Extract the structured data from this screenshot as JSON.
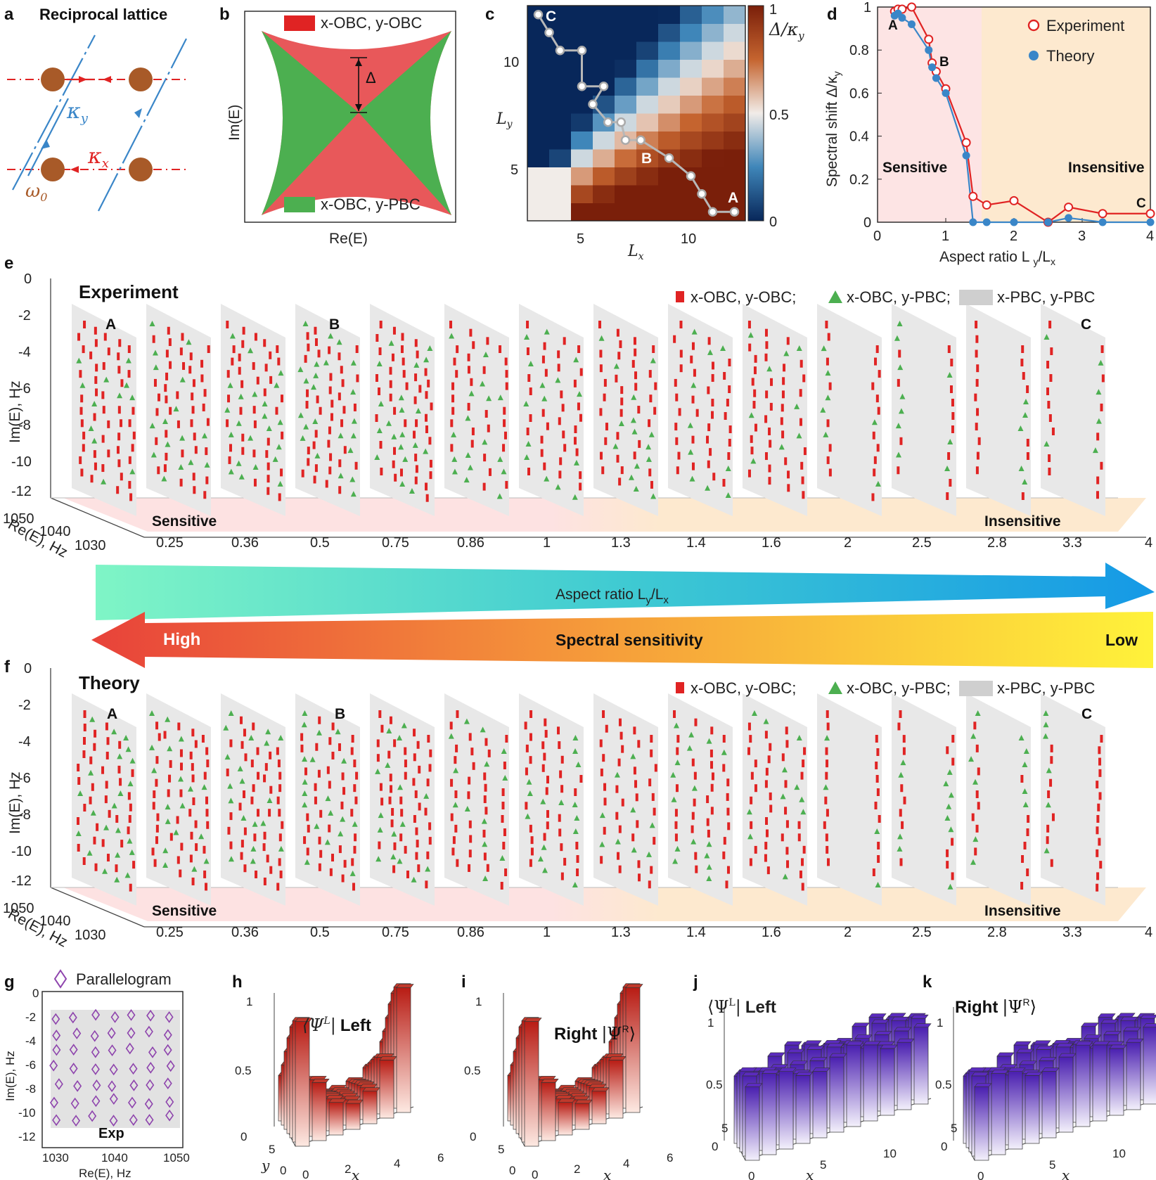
{
  "panel_letters": {
    "a": "a",
    "b": "b",
    "c": "c",
    "d": "d",
    "e": "e",
    "f": "f",
    "g": "g",
    "h": "h",
    "i": "i",
    "j": "j",
    "k": "k"
  },
  "colors": {
    "red": "#e02323",
    "green": "#4caf50",
    "blue": "#3a86c8",
    "brown": "#a85a28",
    "pink_region": "#fde4e4",
    "peach_region": "#fde9cf",
    "plane": "#e6e6e6"
  },
  "panel_a": {
    "title": "Reciprocal lattice",
    "kappa_y": "κ",
    "kappa_y_sub": "y",
    "kappa_x": "κ",
    "kappa_x_sub": "x",
    "omega": "ω",
    "omega_sub": "0"
  },
  "panel_b": {
    "legend_top": "x-OBC, y-OBC",
    "legend_bottom": "x-OBC, y-PBC",
    "gap_label": "Δ",
    "xlabel": "Re(E)",
    "ylabel": "Im(E)"
  },
  "panel_c": {
    "xlabel": "L",
    "xlabel_sub": "x",
    "ylabel": "L",
    "ylabel_sub": "y",
    "xticks": [
      "5",
      "10"
    ],
    "yticks": [
      "5",
      "10"
    ],
    "cbar_ticks": [
      "1",
      "0.5",
      "0"
    ],
    "cbar_label": "Δ/κ",
    "cbar_label_sub": "y",
    "point_labels": {
      "A": "A",
      "B": "B",
      "C": "C"
    },
    "grid_x_range": [
      3,
      12
    ],
    "grid_y_range": [
      2,
      13
    ],
    "path": [
      [
        12,
        2
      ],
      [
        11,
        2
      ],
      [
        10.5,
        3
      ],
      [
        10,
        4
      ],
      [
        9,
        5
      ],
      [
        7.7,
        6
      ],
      [
        7,
        6
      ],
      [
        6.8,
        7
      ],
      [
        6.2,
        7
      ],
      [
        5.5,
        8
      ],
      [
        6,
        9
      ],
      [
        5,
        9
      ],
      [
        5,
        11
      ],
      [
        4,
        11
      ],
      [
        3.5,
        12
      ],
      [
        3,
        13
      ]
    ]
  },
  "panel_d": {
    "xlabel": "Aspect ratio L",
    "xlabel_sub": "y",
    "xlabel_tail": "/L",
    "xlabel_sub2": "x",
    "ylabel": "Spectral shift Δ/κ",
    "ylabel_sub": "y",
    "legend": [
      "Experiment",
      "Theory"
    ],
    "regions": {
      "left": "Sensitive",
      "right": "Insensitive"
    },
    "point_labels": {
      "A": "A",
      "B": "B",
      "C": "C"
    },
    "xticks": [
      "0",
      "1",
      "2",
      "3",
      "4"
    ],
    "yticks": [
      "0",
      "0.2",
      "0.4",
      "0.6",
      "0.8",
      "1"
    ]
  },
  "chart_data": [
    {
      "type": "line",
      "title": "",
      "xlabel": "Aspect ratio Ly/Lx",
      "ylabel": "Spectral shift Δ/κy",
      "xlim": [
        0,
        4
      ],
      "ylim": [
        0,
        1
      ],
      "x_exp": [
        0.25,
        0.3,
        0.36,
        0.5,
        0.75,
        0.8,
        0.86,
        1.0,
        1.3,
        1.4,
        1.6,
        2.0,
        2.5,
        2.8,
        3.3,
        4.0
      ],
      "series": [
        {
          "name": "Experiment",
          "values": [
            0.98,
            0.99,
            0.99,
            1.0,
            0.85,
            0.74,
            0.7,
            0.62,
            0.37,
            0.12,
            0.08,
            0.1,
            0.0,
            0.07,
            0.04,
            0.04
          ]
        },
        {
          "name": "Theory",
          "values": [
            0.96,
            0.97,
            0.95,
            0.92,
            0.8,
            0.72,
            0.67,
            0.6,
            0.31,
            0.0,
            0.0,
            0.0,
            0.0,
            0.02,
            0.0,
            0.0
          ]
        }
      ]
    }
  ],
  "panel_e": {
    "title": "Experiment",
    "legend": [
      "x-OBC, y-OBC;",
      "x-OBC, y-PBC;",
      "x-PBC, y-PBC"
    ],
    "ylabel": "Im(E), Hz",
    "xlabel": "Re(E), Hz",
    "yticks": [
      "0",
      "-2",
      "-4",
      "-6",
      "-8",
      "-10",
      "-12"
    ],
    "re_ticks": [
      "1050",
      "1040",
      "1030"
    ],
    "ratios": [
      "0.25",
      "0.36",
      "0.5",
      "0.75",
      "0.86",
      "1",
      "1.3",
      "1.4",
      "1.6",
      "2",
      "2.5",
      "2.8",
      "3.3",
      "4"
    ],
    "regions": {
      "left": "Sensitive",
      "right": "Insensitive"
    },
    "markers": {
      "A": "A",
      "B": "B",
      "C": "C"
    }
  },
  "panel_f": {
    "title": "Theory",
    "legend": [
      "x-OBC, y-OBC;",
      "x-OBC, y-PBC;",
      "x-PBC, y-PBC"
    ],
    "ylabel": "Im(E), Hz",
    "xlabel": "Re(E), Hz",
    "yticks": [
      "0",
      "-2",
      "-4",
      "-6",
      "-8",
      "-10",
      "-12"
    ],
    "re_ticks": [
      "1050",
      "1040",
      "1030"
    ],
    "ratios": [
      "0.25",
      "0.36",
      "0.5",
      "0.75",
      "0.86",
      "1",
      "1.3",
      "1.4",
      "1.6",
      "2",
      "2.5",
      "2.8",
      "3.3",
      "4"
    ],
    "regions": {
      "left": "Sensitive",
      "right": "Insensitive"
    },
    "markers": {
      "A": "A",
      "B": "B",
      "C": "C"
    }
  },
  "arrows": {
    "aspect": "Aspect ratio L",
    "aspect_sub": "y",
    "aspect_tail": "/L",
    "aspect_sub2": "x",
    "sensitivity": "Spectral sensitivity",
    "high": "High",
    "low": "Low"
  },
  "panel_g": {
    "legend": "Parallelogram",
    "tag": "Exp",
    "xlabel": "Re(E), Hz",
    "ylabel": "Im(E), Hz",
    "xticks": [
      "1030",
      "1040",
      "1050"
    ],
    "yticks": [
      "0",
      "-2",
      "-4",
      "-6",
      "-8",
      "-10",
      "-12"
    ]
  },
  "panel_h": {
    "label_math": "⟨Ψ",
    "label_sup": "L",
    "label_close": "|",
    "label_word": "Left",
    "xticks": [
      "0",
      "2",
      "4",
      "6"
    ],
    "yticks": [
      "0",
      "5"
    ],
    "zticks": [
      "0",
      "0.5",
      "1"
    ],
    "xlabel": "x",
    "ylabel": "y"
  },
  "panel_i": {
    "label_word": "Right",
    "label_math": "|Ψ",
    "label_sup": "R",
    "label_close": "⟩",
    "xticks": [
      "0",
      "2",
      "4",
      "6"
    ],
    "yticks": [
      "0",
      "5"
    ],
    "zticks": [
      "0",
      "0.5",
      "1"
    ],
    "xlabel": "x"
  },
  "panel_j": {
    "label_math": "⟨Ψ",
    "label_sup": "L",
    "label_close": "|",
    "label_word": "Left",
    "xticks": [
      "0",
      "5",
      "10"
    ],
    "yticks": [
      "0",
      "5"
    ],
    "zticks": [
      "0",
      "0.5",
      "1"
    ],
    "xlabel": "x"
  },
  "panel_k": {
    "label_word": "Right",
    "label_math": "|Ψ",
    "label_sup": "R",
    "label_close": "⟩",
    "xticks": [
      "0",
      "5",
      "10"
    ],
    "yticks": [
      "0",
      "5"
    ],
    "zticks": [
      "0",
      "0.5",
      "1"
    ],
    "xlabel": "x"
  }
}
